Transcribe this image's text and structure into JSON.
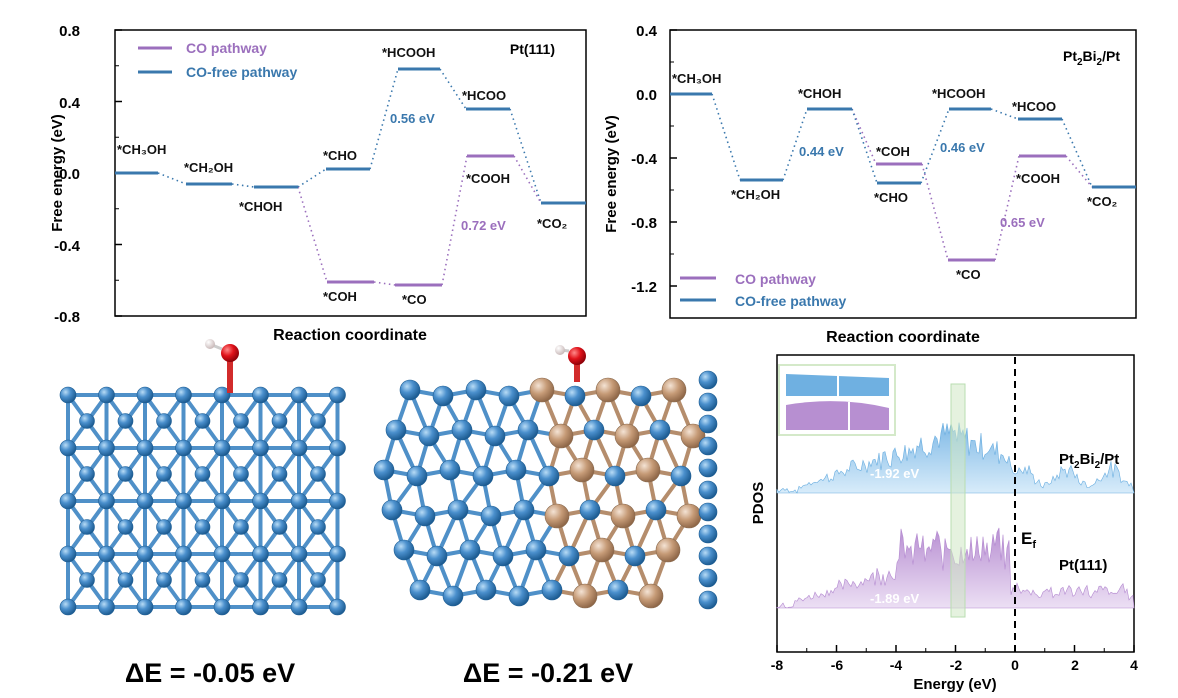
{
  "chart_data": [
    {
      "type": "line",
      "panel": "free-energy-pt111",
      "xlabel": "Reaction coordinate",
      "ylabel": "Free energy (eV)",
      "ylim": [
        -0.8,
        0.8
      ],
      "yticks": [
        "0.8",
        "0.4",
        "0.0",
        "-0.4",
        "-0.8"
      ],
      "grid": false,
      "legend": "top-left",
      "surface_label": "Pt(111)",
      "series": [
        {
          "name": "CO pathway",
          "color": "#9b6fbd"
        },
        {
          "name": "CO-free pathway",
          "color": "#3a78ad"
        }
      ],
      "steps": [
        {
          "species": "*CH₃OH",
          "energy": 0.0,
          "pathway": "shared"
        },
        {
          "species": "*CH₂OH",
          "energy": -0.06,
          "pathway": "shared"
        },
        {
          "species": "*CHOH",
          "energy": -0.08,
          "pathway": "shared"
        },
        {
          "species": "*CHO",
          "energy": 0.02,
          "pathway": "CO-free"
        },
        {
          "species": "*COH",
          "energy": -0.61,
          "pathway": "CO"
        },
        {
          "species": "*CO",
          "energy": -0.63,
          "pathway": "CO"
        },
        {
          "species": "*HCOOH",
          "energy": 0.58,
          "pathway": "CO-free"
        },
        {
          "species": "*HCOO",
          "energy": 0.36,
          "pathway": "CO-free"
        },
        {
          "species": "*COOH",
          "energy": 0.09,
          "pathway": "CO"
        },
        {
          "species": "*CO₂",
          "energy": -0.17,
          "pathway": "shared"
        }
      ],
      "annotations": [
        "0.56 eV",
        "0.72 eV"
      ]
    },
    {
      "type": "line",
      "panel": "free-energy-pt2bi2",
      "xlabel": "Reaction coordinate",
      "ylabel": "Free energy (eV)",
      "ylim": [
        -1.4,
        0.4
      ],
      "yticks": [
        "0.4",
        "0.0",
        "-0.4",
        "-0.8",
        "-1.2"
      ],
      "grid": false,
      "legend": "bottom-left",
      "surface_label": "Pt₂Bi₂/Pt",
      "series": [
        {
          "name": "CO pathway",
          "color": "#9b6fbd"
        },
        {
          "name": "CO-free pathway",
          "color": "#3a78ad"
        }
      ],
      "steps": [
        {
          "species": "*CH₃OH",
          "energy": 0.0,
          "pathway": "shared"
        },
        {
          "species": "*CH₂OH",
          "energy": -0.55,
          "pathway": "shared"
        },
        {
          "species": "*CHOH",
          "energy": -0.11,
          "pathway": "shared"
        },
        {
          "species": "*COH",
          "energy": -0.45,
          "pathway": "CO"
        },
        {
          "species": "*CHO",
          "energy": -0.57,
          "pathway": "CO-free"
        },
        {
          "species": "*HCOOH",
          "energy": -0.11,
          "pathway": "CO-free"
        },
        {
          "species": "*CO",
          "energy": -1.03,
          "pathway": "CO"
        },
        {
          "species": "*HCOO",
          "energy": -0.16,
          "pathway": "CO-free"
        },
        {
          "species": "*COOH",
          "energy": -0.4,
          "pathway": "CO"
        },
        {
          "species": "*CO₂",
          "energy": -0.59,
          "pathway": "shared"
        }
      ],
      "annotations": [
        "0.44 eV",
        "0.46 eV",
        "0.65 eV"
      ]
    },
    {
      "type": "area",
      "panel": "pdos",
      "xlabel": "Energy (eV)",
      "ylabel": "PDOS",
      "xlim": [
        -8,
        4
      ],
      "xticks": [
        "-8",
        "-6",
        "-4",
        "-2",
        "0",
        "2",
        "4"
      ],
      "fermi_label": "E",
      "fermi_subscript": "f",
      "series": [
        {
          "name": "Pt₂Bi₂/Pt",
          "d_band_center": -1.92,
          "d_band_label": "-1.92 eV",
          "color": "#8fc3e8"
        },
        {
          "name": "Pt(111)",
          "d_band_center": -1.89,
          "d_band_label": "-1.89 eV",
          "color": "#c8a6db"
        }
      ]
    }
  ],
  "structures": [
    {
      "name": "Pt(111)",
      "adsorption_energy": "ΔE = -0.05 eV"
    },
    {
      "name": "Pt₂Bi₂/Pt",
      "adsorption_energy": "ΔE = -0.21 eV"
    }
  ],
  "labels": {
    "p1": {
      "legend_co": "CO pathway",
      "legend_cofree": "CO-free pathway",
      "surface_main": "Pt(111)",
      "ylabel": "Free energy (eV)",
      "xlabel": "Reaction coordinate",
      "ann1": "0.56 eV",
      "ann2": "0.72 eV",
      "ch3oh": "*CH₃OH",
      "ch2oh": "*CH₂OH",
      "choh": "*CHOH",
      "cho": "*CHO",
      "coh": "*COH",
      "co": "*CO",
      "hcooh": "*HCOOH",
      "hcoo": "*HCOO",
      "cooh": "*COOH",
      "co2": "*CO₂",
      "ytick0": "0.8",
      "ytick1": "0.4",
      "ytick2": "0.0",
      "ytick3": "-0.4",
      "ytick4": "-0.8"
    },
    "p2": {
      "legend_co": "CO pathway",
      "legend_cofree": "CO-free pathway",
      "surface_main": "Pt₂Bi₂/Pt",
      "ylabel": "Free energy (eV)",
      "xlabel": "Reaction coordinate",
      "ann1": "0.44 eV",
      "ann2": "0.46 eV",
      "ann3": "0.65 eV",
      "ch3oh": "*CH₃OH",
      "ch2oh": "*CH₂OH",
      "choh": "*CHOH",
      "coh": "*COH",
      "cho": "*CHO",
      "hcooh": "*HCOOH",
      "co": "*CO",
      "hcoo": "*HCOO",
      "cooh": "*COOH",
      "co2": "*CO₂",
      "ytick0": "0.4",
      "ytick1": "0.0",
      "ytick2": "-0.4",
      "ytick3": "-0.8",
      "ytick4": "-1.2"
    },
    "p3": {
      "ylabel": "PDOS",
      "xlabel": "Energy (eV)",
      "s1": "Pt₂Bi₂/Pt",
      "s2": "Pt(111)",
      "dband1": "-1.92 eV",
      "dband2": "-1.89 eV",
      "ef": "E",
      "ef_sub": "f",
      "xt0": "-8",
      "xt1": "-6",
      "xt2": "-4",
      "xt3": "-2",
      "xt4": "0",
      "xt5": "2",
      "xt6": "4"
    },
    "s1": "ΔE = -0.05 eV",
    "s2": "ΔE = -0.21 eV"
  },
  "colors": {
    "co_pathway": "#9b6fbd",
    "cofree_pathway": "#3a78ad",
    "pt_atom": "#3f86c8",
    "bi_atom": "#c9a07c",
    "oxygen": "#e0121a",
    "hydrogen": "#f1e6e6"
  }
}
